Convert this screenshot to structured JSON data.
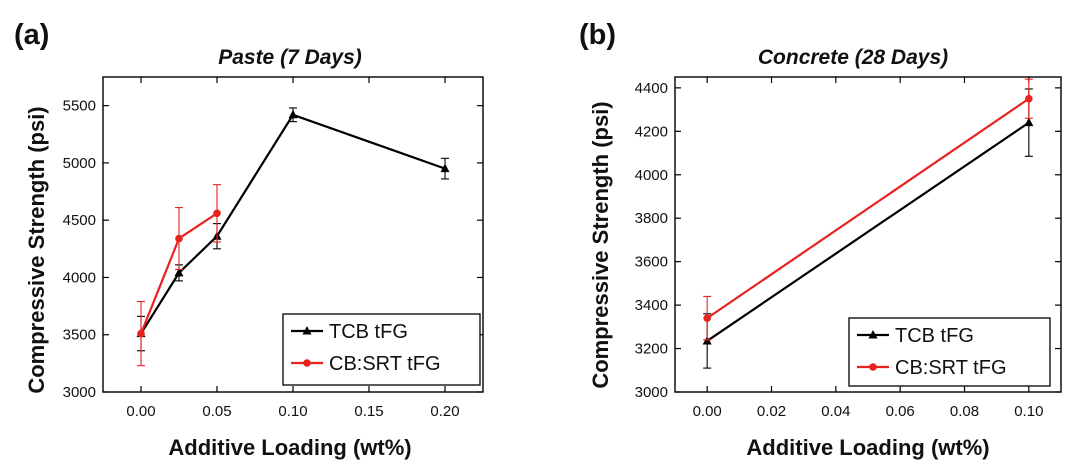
{
  "chart_data": [
    {
      "type": "line",
      "panel_label": "(a)",
      "title": "Paste (7 Days)",
      "xlabel": "Additive Loading (wt%)",
      "ylabel": "Compressive Strength (psi)",
      "xlim": [
        -0.025,
        0.225
      ],
      "ylim": [
        3000,
        5750
      ],
      "xticks": [
        0.0,
        0.05,
        0.1,
        0.15,
        0.2
      ],
      "xtick_labels": [
        "0.00",
        "0.05",
        "0.10",
        "0.15",
        "0.20"
      ],
      "yticks": [
        3000,
        3500,
        4000,
        4500,
        5000,
        5500
      ],
      "ytick_labels": [
        "3000",
        "3500",
        "4000",
        "4500",
        "5000",
        "5500"
      ],
      "legend_position": "bottom-right",
      "series": [
        {
          "name": "TCB tFG",
          "color": "#000000",
          "marker": "triangle",
          "x": [
            0.0,
            0.025,
            0.05,
            0.1,
            0.2
          ],
          "y": [
            3510,
            4040,
            4360,
            5420,
            4950
          ],
          "err": [
            150,
            70,
            110,
            60,
            90
          ]
        },
        {
          "name": "CB:SRT tFG",
          "color": "#e8231f",
          "marker": "circle",
          "x": [
            0.0,
            0.025,
            0.05
          ],
          "y": [
            3510,
            4340,
            4560
          ],
          "err": [
            280,
            270,
            250
          ]
        }
      ]
    },
    {
      "type": "line",
      "panel_label": "(b)",
      "title": "Concrete (28 Days)",
      "xlabel": "Additive Loading (wt%)",
      "ylabel": "Compressive Strength (psi)",
      "xlim": [
        -0.01,
        0.11
      ],
      "ylim": [
        3000,
        4450
      ],
      "xticks": [
        0.0,
        0.02,
        0.04,
        0.06,
        0.08,
        0.1
      ],
      "xtick_labels": [
        "0.00",
        "0.02",
        "0.04",
        "0.06",
        "0.08",
        "0.10"
      ],
      "yticks": [
        3000,
        3200,
        3400,
        3600,
        3800,
        4000,
        4200,
        4400
      ],
      "ytick_labels": [
        "3000",
        "3200",
        "3400",
        "3600",
        "3800",
        "4000",
        "4200",
        "4400"
      ],
      "legend_position": "bottom-right",
      "series": [
        {
          "name": "TCB tFG",
          "color": "#000000",
          "marker": "triangle",
          "x": [
            0.0,
            0.1
          ],
          "y": [
            3235,
            4240
          ],
          "err": [
            125,
            155
          ]
        },
        {
          "name": "CB:SRT tFG",
          "color": "#e8231f",
          "marker": "circle",
          "x": [
            0.0,
            0.1
          ],
          "y": [
            3340,
            4350
          ],
          "err": [
            100,
            90
          ]
        }
      ]
    }
  ]
}
